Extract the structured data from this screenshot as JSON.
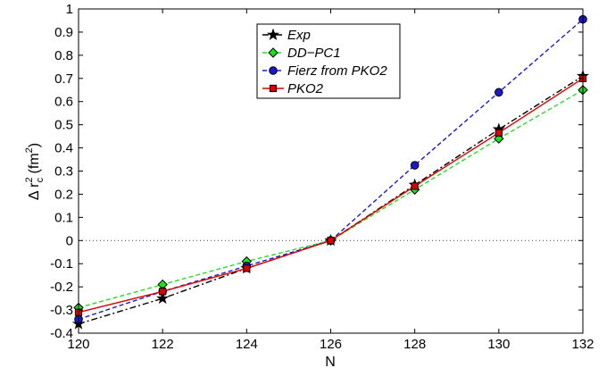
{
  "chart_data": {
    "type": "line",
    "xlabel": "N",
    "ylabel_parts": {
      "base": "Δ r",
      "sup": "2",
      "sub": "c",
      "unit_open": " (fm",
      "unit_sup": "2",
      "unit_close": ")"
    },
    "x": [
      120,
      122,
      124,
      126,
      128,
      130,
      132
    ],
    "xlim": [
      120,
      132
    ],
    "ylim": [
      -0.4,
      1.0
    ],
    "xticks": [
      "120",
      "122",
      "124",
      "126",
      "128",
      "130",
      "132"
    ],
    "yticks": [
      "-0.4",
      "-0.3",
      "-0.2",
      "-0.1",
      "0",
      "0.1",
      "0.2",
      "0.3",
      "0.4",
      "0.5",
      "0.6",
      "0.7",
      "0.8",
      "0.9",
      "1"
    ],
    "grid": false,
    "zero_line": true,
    "legend_position": "top-center",
    "series": [
      {
        "name": "Exp",
        "color": "#000000",
        "dash": "dash-dot",
        "marker": "star",
        "values": [
          -0.36,
          -0.25,
          -0.12,
          0.0,
          0.24,
          0.48,
          0.71
        ]
      },
      {
        "name": "DD−PC1",
        "color": "#22dd22",
        "dash": "dashed",
        "marker": "diamond",
        "values": [
          -0.29,
          -0.19,
          -0.09,
          0.0,
          0.22,
          0.44,
          0.65
        ]
      },
      {
        "name": "Fierz from PKO2",
        "color": "#1a1acc",
        "dash": "dashed",
        "marker": "circle",
        "values": [
          -0.34,
          -0.22,
          -0.11,
          0.0,
          0.325,
          0.64,
          0.955
        ]
      },
      {
        "name": "PKO2",
        "color": "#dd0000",
        "dash": "solid",
        "marker": "square",
        "values": [
          -0.31,
          -0.22,
          -0.12,
          0.0,
          0.235,
          0.465,
          0.7
        ]
      }
    ]
  }
}
